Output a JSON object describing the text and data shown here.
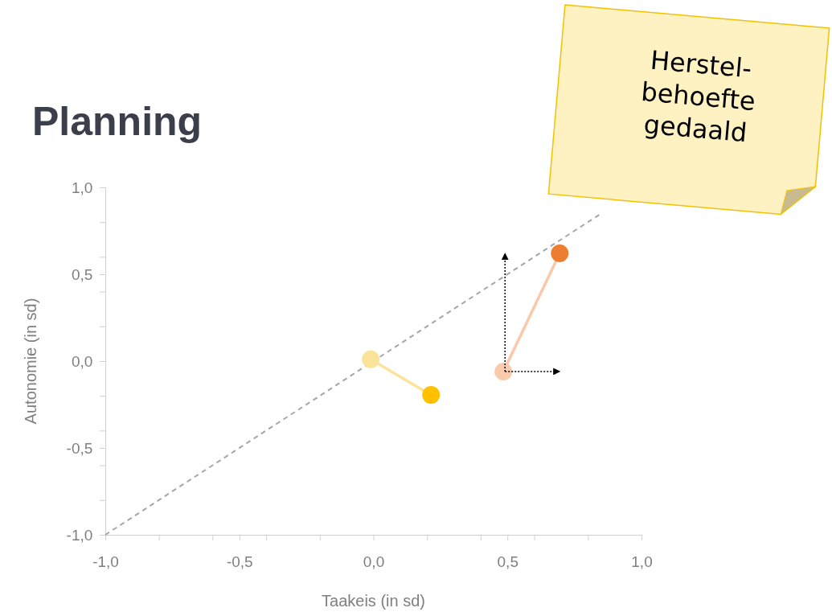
{
  "chart_data": {
    "type": "line",
    "title": "Planning",
    "xlabel": "Taakeis (in sd)",
    "ylabel": "Autonomie (in sd)",
    "xlim": [
      -1,
      1
    ],
    "ylim": [
      -1,
      1
    ],
    "xticks": [
      {
        "value": -1,
        "label": "-1,0"
      },
      {
        "value": -0.8,
        "label": null
      },
      {
        "value": -0.6,
        "label": null
      },
      {
        "value": -0.5,
        "label": "-0,5"
      },
      {
        "value": -0.4,
        "label": null
      },
      {
        "value": -0.2,
        "label": null
      },
      {
        "value": 0,
        "label": "0,0"
      },
      {
        "value": 0.2,
        "label": null
      },
      {
        "value": 0.4,
        "label": null
      },
      {
        "value": 0.5,
        "label": "0,5"
      },
      {
        "value": 0.6,
        "label": null
      },
      {
        "value": 0.8,
        "label": null
      },
      {
        "value": 1,
        "label": "1,0"
      }
    ],
    "yticks": [
      {
        "value": -1,
        "label": "-1,0"
      },
      {
        "value": -0.8,
        "label": null
      },
      {
        "value": -0.6,
        "label": null
      },
      {
        "value": -0.5,
        "label": "-0,5"
      },
      {
        "value": -0.4,
        "label": null
      },
      {
        "value": -0.2,
        "label": null
      },
      {
        "value": 0,
        "label": "0,0"
      },
      {
        "value": 0.2,
        "label": null
      },
      {
        "value": 0.4,
        "label": null
      },
      {
        "value": 0.5,
        "label": "0,5"
      },
      {
        "value": 0.6,
        "label": null
      },
      {
        "value": 0.8,
        "label": null
      },
      {
        "value": 1,
        "label": "1,0"
      }
    ],
    "grid": false,
    "marker": "circle",
    "series": [
      {
        "x": [
          -1,
          0.85
        ],
        "values": [
          -1,
          0.85
        ],
        "color": "#a6a6a6",
        "line_style": "dashed",
        "marker": "none"
      },
      {
        "x": [
          -0.01,
          0.215
        ],
        "values": [
          0.01,
          -0.195
        ],
        "color": "#fbe49a",
        "colors": [
          "#fbe49a",
          "#ffc000"
        ]
      },
      {
        "x": [
          0.485,
          0.695
        ],
        "values": [
          -0.06,
          0.62
        ],
        "color": "#f8c9ab",
        "colors": [
          "#f8cbad",
          "#ed7d31"
        ]
      }
    ],
    "annotations": [
      "Herstel-\nbehoefte\ngedaald"
    ]
  }
}
